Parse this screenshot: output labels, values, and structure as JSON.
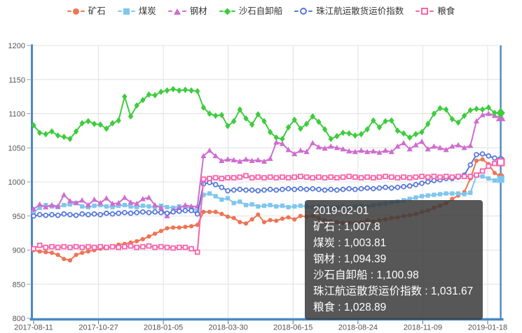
{
  "legend": {
    "items": [
      {
        "label": "矿石",
        "marker": "circle",
        "color": "#ee7454"
      },
      {
        "label": "煤炭",
        "marker": "square",
        "color": "#7fc6ee"
      },
      {
        "label": "钢材",
        "marker": "triangle",
        "color": "#cf6ccf"
      },
      {
        "label": "沙石自卸船",
        "marker": "diamond",
        "color": "#3ecc3e"
      },
      {
        "label": "珠江航运散货运价指数",
        "marker": "circle-open",
        "color": "#5678d8"
      },
      {
        "label": "粮食",
        "marker": "square-open",
        "color": "#f763ab"
      }
    ]
  },
  "chart_data": {
    "type": "line",
    "title": "",
    "xlabel": "",
    "ylabel": "",
    "ylim": [
      800,
      1200
    ],
    "grid": true,
    "legend_position": "top",
    "x_tick_labels": [
      "2017-08-11",
      "2017-10-27",
      "2018-01-05",
      "2018-03-30",
      "2018-06-15",
      "2018-08-24",
      "2018-11-09",
      "2019-01-18"
    ],
    "y_tick_labels": [
      800,
      850,
      900,
      950,
      1000,
      1050,
      1100,
      1150,
      1200
    ],
    "hover_date": "2019-02-01",
    "hover_index": 77,
    "series": [
      {
        "name": "矿石",
        "marker": "circle",
        "color": "#ee7454",
        "values": [
          900,
          898,
          897,
          896,
          893,
          887,
          885,
          893,
          896,
          898,
          900,
          902,
          903,
          905,
          908,
          909,
          911,
          913,
          916,
          920,
          924,
          928,
          932,
          933,
          933,
          934,
          935,
          937,
          956,
          956,
          956,
          953,
          949,
          947,
          941,
          939,
          945,
          952,
          941,
          944,
          943,
          946,
          948,
          945,
          950,
          949,
          950,
          947,
          944,
          942,
          941,
          940,
          940,
          940,
          941,
          944,
          942,
          944,
          945,
          947,
          948,
          950,
          951,
          953,
          956,
          958,
          962,
          965,
          969,
          975,
          980,
          985,
          1005,
          1031,
          1033,
          1026,
          1013,
          1007.8
        ]
      },
      {
        "name": "煤炭",
        "marker": "square",
        "color": "#7fc6ee",
        "values": [
          956,
          962,
          966,
          964,
          963,
          966,
          967,
          969,
          964,
          963,
          965,
          966,
          964,
          963,
          965,
          966,
          964,
          963,
          965,
          964,
          963,
          965,
          963,
          962,
          964,
          963,
          962,
          957,
          981,
          983,
          979,
          974,
          976,
          969,
          971,
          966,
          967,
          964,
          965,
          966,
          964,
          965,
          963,
          964,
          965,
          964,
          963,
          964,
          963,
          962,
          963,
          964,
          963,
          964,
          965,
          964,
          966,
          967,
          968,
          970,
          971,
          973,
          975,
          977,
          979,
          980,
          981,
          982,
          983,
          983,
          983,
          982,
          984,
          1009,
          1008,
          1005,
          1002,
          1003.81
        ]
      },
      {
        "name": "钢材",
        "marker": "triangle",
        "color": "#cf6ccf",
        "values": [
          960,
          967,
          963,
          966,
          964,
          981,
          972,
          969,
          973,
          966,
          974,
          969,
          976,
          968,
          969,
          977,
          970,
          968,
          975,
          977,
          966,
          962,
          950,
          958,
          962,
          966,
          964,
          964,
          1038,
          1046,
          1038,
          1031,
          1033,
          1032,
          1030,
          1033,
          1031,
          1032,
          1030,
          1034,
          1058,
          1056,
          1047,
          1041,
          1046,
          1044,
          1057,
          1051,
          1049,
          1052,
          1050,
          1048,
          1045,
          1044,
          1046,
          1044,
          1045,
          1043,
          1046,
          1044,
          1052,
          1057,
          1048,
          1054,
          1059,
          1048,
          1052,
          1050,
          1047,
          1052,
          1054,
          1050,
          1053,
          1089,
          1098,
          1100,
          1097,
          1094.39
        ]
      },
      {
        "name": "沙石自卸船",
        "marker": "diamond",
        "color": "#3ecc3e",
        "values": [
          1083,
          1072,
          1070,
          1074,
          1068,
          1066,
          1063,
          1074,
          1086,
          1089,
          1085,
          1084,
          1078,
          1086,
          1090,
          1125,
          1096,
          1112,
          1120,
          1128,
          1127,
          1132,
          1134,
          1136,
          1134,
          1135,
          1134,
          1133,
          1109,
          1100,
          1097,
          1098,
          1082,
          1089,
          1106,
          1093,
          1084,
          1099,
          1089,
          1073,
          1065,
          1063,
          1080,
          1091,
          1078,
          1085,
          1096,
          1088,
          1077,
          1063,
          1067,
          1072,
          1071,
          1068,
          1070,
          1077,
          1090,
          1080,
          1089,
          1090,
          1075,
          1071,
          1065,
          1070,
          1073,
          1085,
          1100,
          1108,
          1106,
          1092,
          1087,
          1097,
          1105,
          1107,
          1106,
          1109,
          1101,
          1100.98
        ]
      },
      {
        "name": "珠江航运散货运价指数",
        "marker": "circle-open",
        "color": "#5678d8",
        "values": [
          950,
          952,
          951,
          952,
          951,
          953,
          952,
          951,
          953,
          952,
          953,
          952,
          954,
          953,
          954,
          955,
          954,
          955,
          956,
          955,
          956,
          955,
          954,
          956,
          957,
          958,
          958,
          953,
          997,
          999,
          996,
          992,
          987,
          988,
          989,
          988,
          988,
          987,
          988,
          989,
          988,
          989,
          990,
          989,
          990,
          989,
          990,
          989,
          988,
          989,
          988,
          989,
          990,
          989,
          990,
          991,
          990,
          991,
          992,
          991,
          992,
          993,
          994,
          996,
          998,
          1000,
          1002,
          1003,
          1005,
          1005,
          1007,
          1010,
          1025,
          1040,
          1041,
          1038,
          1035,
          1031.67
        ]
      },
      {
        "name": "粮食",
        "marker": "square-open",
        "color": "#f763ab",
        "values": [
          902,
          907,
          904,
          905,
          904,
          905,
          904,
          905,
          904,
          905,
          904,
          905,
          904,
          905,
          904,
          905,
          906,
          904,
          905,
          906,
          904,
          905,
          904,
          903,
          904,
          904,
          902,
          897,
          1004,
          1005,
          1006,
          1005,
          1006,
          1006,
          1007,
          1009,
          1006,
          1007,
          1006,
          1007,
          1006,
          1007,
          1006,
          1007,
          1008,
          1007,
          1006,
          1007,
          1006,
          1007,
          1006,
          1007,
          1008,
          1007,
          1006,
          1007,
          1006,
          1007,
          1008,
          1007,
          1006,
          1007,
          1006,
          1007,
          1008,
          1007,
          1008,
          1007,
          1008,
          1007,
          1008,
          1008,
          1008,
          1010,
          1016,
          1023,
          1027,
          1028.89
        ]
      }
    ]
  },
  "tooltip": {
    "date": "2019-02-01",
    "lines": [
      "2019-02-01",
      "矿石 : 1,007.8",
      "煤炭 : 1,003.81",
      "钢材 : 1,094.39",
      "沙石自卸船 : 1,100.98",
      "珠江航运散货运价指数 : 1,031.67",
      "粮食 : 1,028.89"
    ]
  },
  "colors": {
    "axis": "#4a89c4",
    "grid": "#e0e0e0",
    "tick_text": "#555555",
    "tooltip_bg": "rgba(58,58,58,0.85)",
    "legend_text": "#333333",
    "background": "#ffffff"
  }
}
